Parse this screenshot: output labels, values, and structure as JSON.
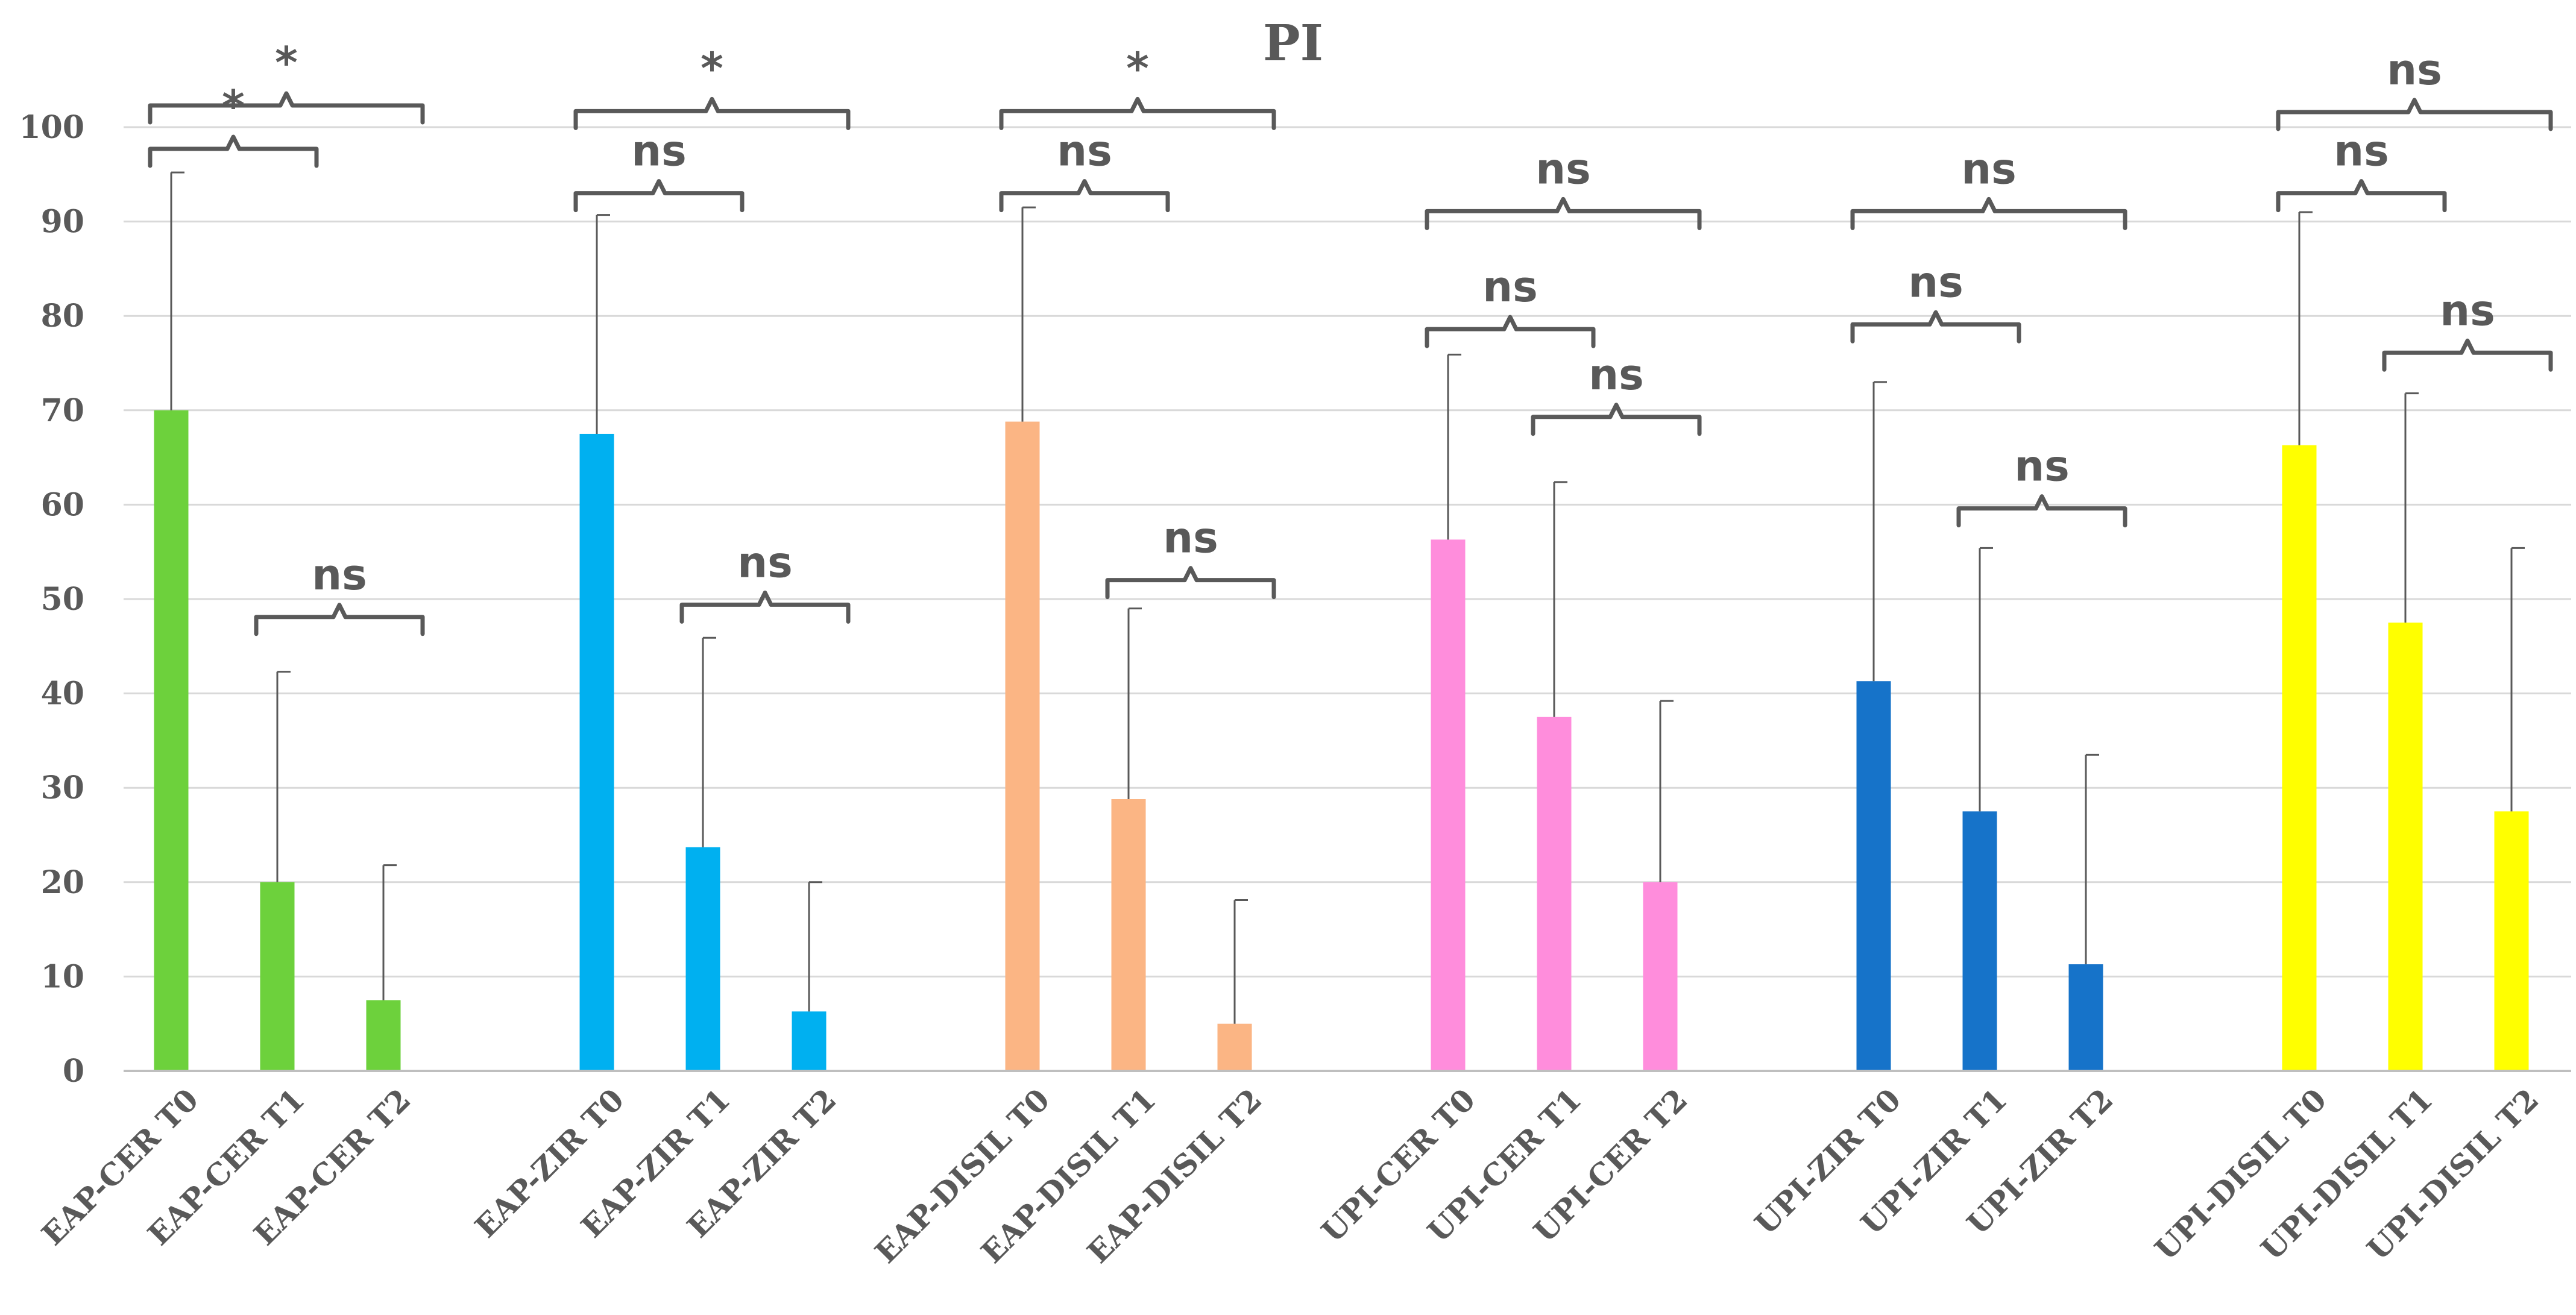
{
  "chart_data": {
    "type": "bar",
    "title": "PI",
    "xlabel": "",
    "ylabel": "",
    "ylim": [
      0,
      100
    ],
    "yticks": [
      0,
      10,
      20,
      30,
      40,
      50,
      60,
      70,
      80,
      90,
      100
    ],
    "grid": true,
    "legend": "none",
    "categories": [
      "EAP-CER T0",
      "EAP-CER T1",
      "EAP-CER T2",
      "EAP-ZIR T0",
      "EAP-ZIR T1",
      "EAP-ZIR T2",
      "EAP-DISIL T0",
      "EAP-DISIL T1",
      "EAP-DISIL  T2",
      "UPI-CER T0",
      "UPI-CER T1",
      "UPI-CER T2",
      "UPI-ZIR T0",
      "UPI-ZIR T1",
      "UPI-ZIR T2",
      "UPI-DISIL T0",
      "UPI-DISIL T1",
      "UPI-DISIL T2"
    ],
    "values": [
      70,
      20,
      7.5,
      67.5,
      23.7,
      6.3,
      68.8,
      28.8,
      5.0,
      56.3,
      37.5,
      20.0,
      41.3,
      27.5,
      11.3,
      66.3,
      47.5,
      27.5
    ],
    "error_upper": [
      95.2,
      42.3,
      21.8,
      90.7,
      45.9,
      20.0,
      91.5,
      49.0,
      18.1,
      75.9,
      62.4,
      39.2,
      73.0,
      55.4,
      33.5,
      91.0,
      71.8,
      55.4
    ],
    "groups": [
      {
        "name": "EAP-CER",
        "color": "#6dd13c"
      },
      {
        "name": "EAP-ZIR",
        "color": "#00b0f0"
      },
      {
        "name": "EAP-DISIL",
        "color": "#fbb584"
      },
      {
        "name": "UPI-CER",
        "color": "#ff8ddc"
      },
      {
        "name": "UPI-ZIR",
        "color": "#1673c9"
      },
      {
        "name": "UPI-DISIL",
        "color": "#ffff00"
      }
    ],
    "annotations": [
      {
        "from": 0,
        "to": 2,
        "level": 102.3,
        "label": "*"
      },
      {
        "from": 0,
        "to": 1,
        "level": 97.7,
        "label": "*"
      },
      {
        "from": 1,
        "to": 2,
        "level": 48.1,
        "label": "ns"
      },
      {
        "from": 3,
        "to": 5,
        "level": 101.7,
        "label": "*"
      },
      {
        "from": 3,
        "to": 4,
        "level": 93.0,
        "label": "ns"
      },
      {
        "from": 4,
        "to": 5,
        "level": 49.4,
        "label": "ns"
      },
      {
        "from": 6,
        "to": 8,
        "level": 101.7,
        "label": "*"
      },
      {
        "from": 6,
        "to": 7,
        "level": 93.0,
        "label": "ns"
      },
      {
        "from": 7,
        "to": 8,
        "level": 52.0,
        "label": "ns"
      },
      {
        "from": 9,
        "to": 11,
        "level": 91.1,
        "label": "ns"
      },
      {
        "from": 9,
        "to": 10,
        "level": 78.6,
        "label": "ns"
      },
      {
        "from": 10,
        "to": 11,
        "level": 69.3,
        "label": "ns"
      },
      {
        "from": 12,
        "to": 14,
        "level": 91.1,
        "label": "ns"
      },
      {
        "from": 12,
        "to": 13,
        "level": 79.1,
        "label": "ns"
      },
      {
        "from": 13,
        "to": 14,
        "level": 59.6,
        "label": "ns"
      },
      {
        "from": 15,
        "to": 17,
        "level": 101.6,
        "label": "ns"
      },
      {
        "from": 15,
        "to": 16,
        "level": 93.0,
        "label": "ns"
      },
      {
        "from": 16,
        "to": 17,
        "level": 76.1,
        "label": "ns"
      }
    ]
  }
}
